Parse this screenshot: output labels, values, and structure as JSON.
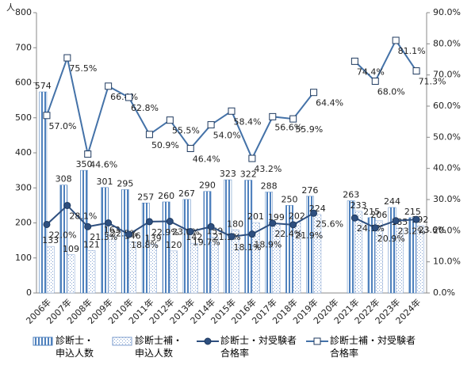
{
  "chart_data": {
    "type": "bar-line",
    "y_label": "人",
    "categories": [
      "2006年",
      "2007年",
      "2008年",
      "2009年",
      "2010年",
      "2011年",
      "2012年",
      "2013年",
      "2014年",
      "2015年",
      "2016年",
      "2017年",
      "2018年",
      "2019年",
      "2020年",
      "2021年",
      "2022年",
      "2023年",
      "2024年"
    ],
    "ylim": [
      0,
      800
    ],
    "yticks": [
      0,
      100,
      200,
      300,
      400,
      500,
      600,
      700,
      800
    ],
    "y2lim": [
      0,
      90
    ],
    "y2ticks": [
      {
        "value": 0,
        "label": "0.0%"
      },
      {
        "value": 10,
        "label": "10.0%"
      },
      {
        "value": 20,
        "label": "20.0%"
      },
      {
        "value": 30,
        "label": "30.0%"
      },
      {
        "value": 40,
        "label": "40.0%"
      },
      {
        "value": 50,
        "label": "50.0%"
      },
      {
        "value": 60,
        "label": "60.0%"
      },
      {
        "value": 70,
        "label": "70.0%"
      },
      {
        "value": 80,
        "label": "80.0%"
      },
      {
        "value": 90,
        "label": "90.0%"
      }
    ],
    "series": [
      {
        "name": "診断士・\n申込人数",
        "kind": "bar",
        "pattern": "hatch",
        "color": "#4f81bd",
        "values": [
          574,
          308,
          350,
          301,
          295,
          257,
          260,
          267,
          290,
          323,
          322,
          288,
          250,
          276,
          null,
          263,
          215,
          244,
          215
        ]
      },
      {
        "name": "診断士補・\n申込人数",
        "kind": "bar",
        "pattern": "dots",
        "color": "#7f9fcf",
        "values": [
          133,
          109,
          121,
          163,
          146,
          139,
          120,
          142,
          159,
          180,
          201,
          199,
          202,
          224,
          null,
          233,
          206,
          185,
          192
        ]
      },
      {
        "name": "診断士・対受験者\n合格率",
        "kind": "line",
        "marker": "circle",
        "axis": "y2",
        "color": "#2e4f7f",
        "values": [
          22.0,
          28.1,
          21.3,
          22.5,
          18.8,
          22.9,
          23.0,
          19.7,
          21.3,
          18.1,
          18.9,
          22.4,
          21.9,
          25.6,
          null,
          24.1,
          20.9,
          23.2,
          23.6
        ],
        "value_labels": [
          "22.0%",
          "28.1%",
          "21.3%",
          "22.5%",
          "18.8%",
          "22.9%",
          "23.0%",
          "19.7%",
          "21.3%",
          "18.1%",
          "18.9%",
          "22.4%",
          "21.9%",
          "25.6%",
          null,
          "24.1%",
          "20.9%",
          "23.2%",
          "23.6%"
        ]
      },
      {
        "name": "診断士補・対受験者\n合格率",
        "kind": "line",
        "marker": "square",
        "axis": "y2",
        "color": "#4472a8",
        "values": [
          57.0,
          75.5,
          44.6,
          66.4,
          62.8,
          50.9,
          55.5,
          46.4,
          54.0,
          58.4,
          43.2,
          56.6,
          55.9,
          64.4,
          null,
          74.4,
          68.0,
          81.1,
          71.3
        ],
        "value_labels": [
          "57.0%",
          "75.5%",
          "44.6%",
          "66.4%",
          "62.8%",
          "50.9%",
          "55.5%",
          "46.4%",
          "54.0%",
          "58.4%",
          "43.2%",
          "56.6%",
          "55.9%",
          "64.4%",
          null,
          "74.4%",
          "68.0%",
          "81.1%",
          "71.3%"
        ]
      }
    ]
  }
}
